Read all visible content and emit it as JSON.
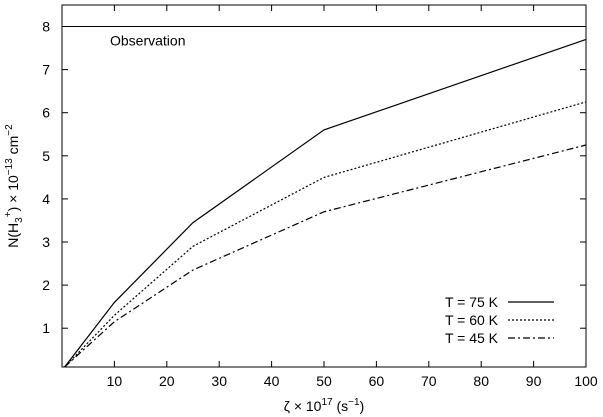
{
  "chart_data": {
    "type": "line",
    "xlabel": "ζ × 10",
    "xlabel_sup": "17",
    "xlabel_unit_pre": " (s",
    "xlabel_unit_sup": "−1",
    "xlabel_unit_post": ")",
    "ylabel": {
      "pre": "N(H",
      "sub": "3",
      "sup1": "+",
      "mid": ") × 10",
      "sup2": "−13",
      "unit": " cm",
      "sup3": "−2"
    },
    "xlim": [
      0,
      100
    ],
    "ylim": [
      0.1,
      8.5
    ],
    "x_ticks": [
      10,
      20,
      30,
      40,
      50,
      60,
      70,
      80,
      90,
      100
    ],
    "y_ticks": [
      1,
      2,
      3,
      4,
      5,
      6,
      7,
      8
    ],
    "grid": false,
    "legend_position": "bottom-right",
    "series": [
      {
        "name": "T = 75 K",
        "style": "solid",
        "x": [
          0.5,
          10,
          25,
          50,
          100
        ],
        "y": [
          0.1,
          1.6,
          3.45,
          5.6,
          7.7
        ]
      },
      {
        "name": "T = 60 K",
        "style": "dotted",
        "x": [
          0.5,
          10,
          25,
          50,
          100
        ],
        "y": [
          0.1,
          1.3,
          2.9,
          4.5,
          6.25
        ]
      },
      {
        "name": "T = 45 K",
        "style": "dashdot",
        "x": [
          0.5,
          10,
          25,
          50,
          100
        ],
        "y": [
          0.1,
          1.15,
          2.35,
          3.7,
          5.25
        ]
      }
    ],
    "reference_line": {
      "label": "Observation",
      "y": 8.0
    }
  }
}
